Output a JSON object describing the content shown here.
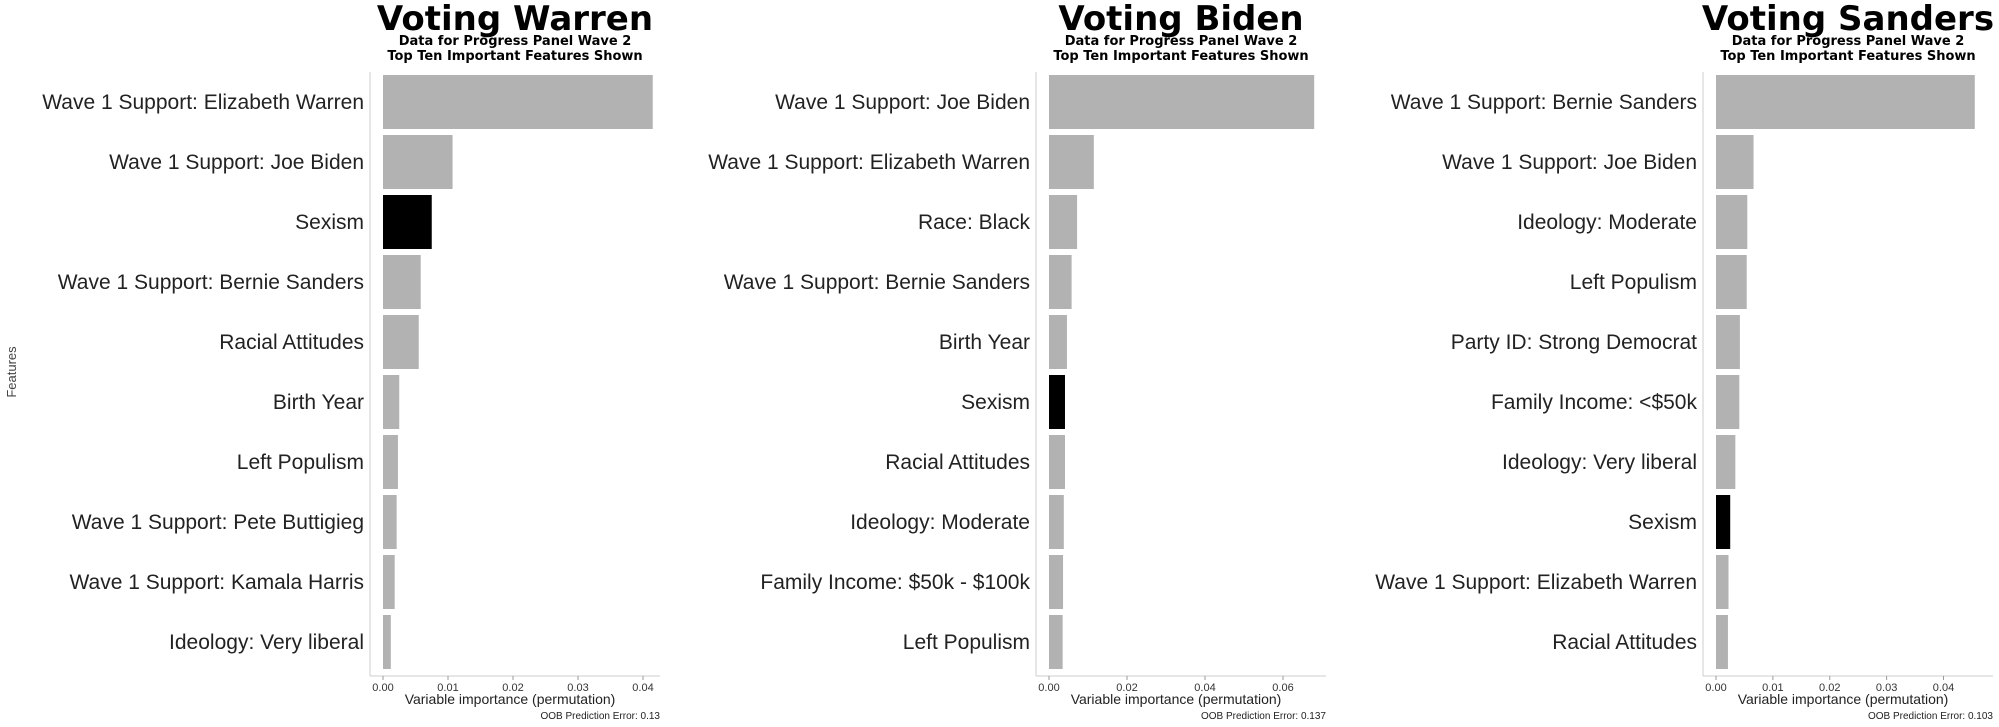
{
  "y_axis_label": "Features",
  "chart_data": [
    {
      "type": "bar",
      "orientation": "horizontal",
      "title": "Voting Warren",
      "subtitle": [
        "Data for Progress Panel Wave 2",
        "Top Ten Important Features Shown"
      ],
      "xlabel": "Variable importance (permutation)",
      "ylabel": "Features",
      "xlim": [
        0,
        0.042
      ],
      "ticks": [
        0.0,
        0.01,
        0.02,
        0.03,
        0.04
      ],
      "tick_labels": [
        "0.00",
        "0.01",
        "0.02",
        "0.03",
        "0.04"
      ],
      "footnote": "OOB Prediction Error: 0.13",
      "categories": [
        "Wave 1 Support: Elizabeth Warren",
        "Wave 1 Support: Joe Biden",
        "Sexism",
        "Wave 1 Support: Bernie Sanders",
        "Racial Attitudes",
        "Birth Year",
        "Left Populism",
        "Wave 1 Support: Pete Buttigieg",
        "Wave 1 Support: Kamala Harris",
        "Ideology: Very liberal"
      ],
      "values": [
        0.0415,
        0.0107,
        0.0075,
        0.0058,
        0.0055,
        0.0025,
        0.0023,
        0.0021,
        0.0018,
        0.0012
      ],
      "highlight": "Sexism",
      "colors": {
        "default": "#b2b2b2",
        "highlight": "#000000"
      },
      "grid": false
    },
    {
      "type": "bar",
      "orientation": "horizontal",
      "title": "Voting Biden",
      "subtitle": [
        "Data for Progress Panel Wave 2",
        "Top Ten Important Features Shown"
      ],
      "xlabel": "Variable importance (permutation)",
      "xlim": [
        0,
        0.07
      ],
      "ticks": [
        0.0,
        0.02,
        0.04,
        0.06
      ],
      "tick_labels": [
        "0.00",
        "0.02",
        "0.04",
        "0.06"
      ],
      "footnote": "OOB Prediction Error: 0.137",
      "categories": [
        "Wave 1 Support: Joe Biden",
        "Wave 1 Support: Elizabeth Warren",
        "Race: Black",
        "Wave 1 Support: Bernie Sanders",
        "Birth Year",
        "Sexism",
        "Racial Attitudes",
        "Ideology: Moderate",
        "Family Income: $50k - $100k",
        "Left Populism"
      ],
      "values": [
        0.068,
        0.0115,
        0.0072,
        0.0058,
        0.0046,
        0.0041,
        0.0041,
        0.0038,
        0.0036,
        0.0035
      ],
      "highlight": "Sexism",
      "colors": {
        "default": "#b2b2b2",
        "highlight": "#000000"
      },
      "grid": false
    },
    {
      "type": "bar",
      "orientation": "horizontal",
      "title": "Voting Sanders",
      "subtitle": [
        "Data for Progress Panel Wave 2",
        "Top Ten Important Features Shown"
      ],
      "xlabel": "Variable importance (permutation)",
      "xlim": [
        0,
        0.048
      ],
      "ticks": [
        0.0,
        0.01,
        0.02,
        0.03,
        0.04
      ],
      "tick_labels": [
        "0.00",
        "0.01",
        "0.02",
        "0.03",
        "0.04"
      ],
      "footnote": "OOB Prediction Error: 0.103",
      "categories": [
        "Wave 1 Support: Bernie Sanders",
        "Wave 1 Support: Joe Biden",
        "Ideology: Moderate",
        "Left Populism",
        "Party ID: Strong Democrat",
        "Family Income: <$50k",
        "Ideology: Very liberal",
        "Sexism",
        "Wave 1 Support: Elizabeth Warren",
        "Racial Attitudes"
      ],
      "values": [
        0.0455,
        0.0066,
        0.0055,
        0.0054,
        0.0042,
        0.0041,
        0.0034,
        0.0025,
        0.0022,
        0.0021
      ],
      "highlight": "Sexism",
      "colors": {
        "default": "#b2b2b2",
        "highlight": "#000000"
      },
      "grid": false
    }
  ]
}
